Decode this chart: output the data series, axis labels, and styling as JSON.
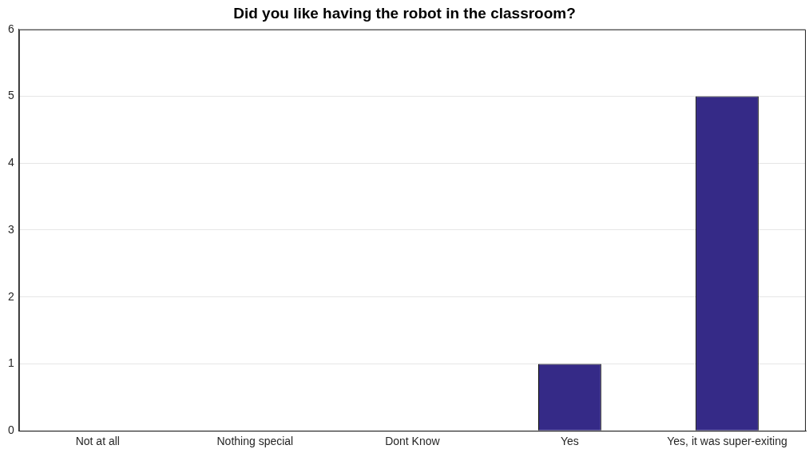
{
  "chart_data": {
    "type": "bar",
    "title": "Did you like having the robot in the classroom?",
    "categories": [
      "Not at all",
      "Nothing special",
      "Dont Know",
      "Yes",
      "Yes, it was super-exiting"
    ],
    "values": [
      0,
      0,
      0,
      1,
      5
    ],
    "color": "#352a87",
    "ylim": [
      0,
      6
    ],
    "yticks": [
      0,
      1,
      2,
      3,
      4,
      5,
      6
    ],
    "grid": "y",
    "legend": false
  }
}
